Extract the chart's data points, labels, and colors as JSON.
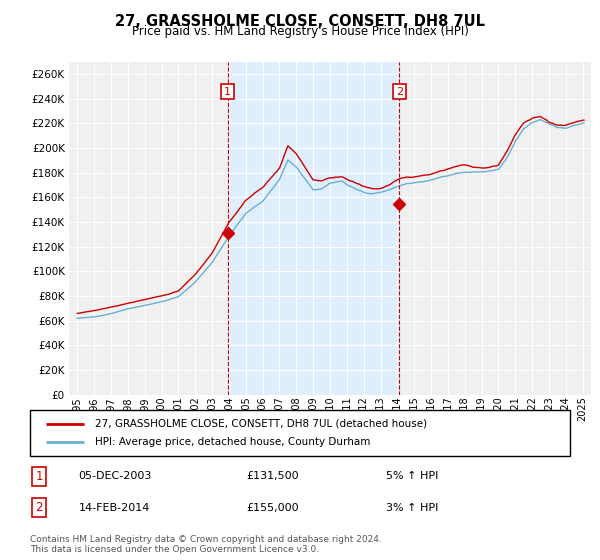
{
  "title": "27, GRASSHOLME CLOSE, CONSETT, DH8 7UL",
  "subtitle": "Price paid vs. HM Land Registry's House Price Index (HPI)",
  "legend_line1": "27, GRASSHOLME CLOSE, CONSETT, DH8 7UL (detached house)",
  "legend_line2": "HPI: Average price, detached house, County Durham",
  "annotation1_date": "05-DEC-2003",
  "annotation1_price": "£131,500",
  "annotation1_hpi": "5% ↑ HPI",
  "annotation2_date": "14-FEB-2014",
  "annotation2_price": "£155,000",
  "annotation2_hpi": "3% ↑ HPI",
  "footer": "Contains HM Land Registry data © Crown copyright and database right 2024.\nThis data is licensed under the Open Government Licence v3.0.",
  "hpi_color": "#6baed6",
  "price_color": "#cc0000",
  "shade_color": "#ddeeff",
  "bg_color": "#f0f0f0",
  "grid_color": "white",
  "marker1_x": 2003.92,
  "marker1_y": 131500,
  "marker2_x": 2014.12,
  "marker2_y": 155000,
  "vline1_x": 2003.92,
  "vline2_x": 2014.12,
  "ylim": [
    0,
    270000
  ],
  "xlim": [
    1994.5,
    2025.5
  ],
  "yticks": [
    0,
    20000,
    40000,
    60000,
    80000,
    100000,
    120000,
    140000,
    160000,
    180000,
    200000,
    220000,
    240000,
    260000
  ],
  "xticks": [
    1995,
    1996,
    1997,
    1998,
    1999,
    2000,
    2001,
    2002,
    2003,
    2004,
    2005,
    2006,
    2007,
    2008,
    2009,
    2010,
    2011,
    2012,
    2013,
    2014,
    2015,
    2016,
    2017,
    2018,
    2019,
    2020,
    2021,
    2022,
    2023,
    2024,
    2025
  ]
}
